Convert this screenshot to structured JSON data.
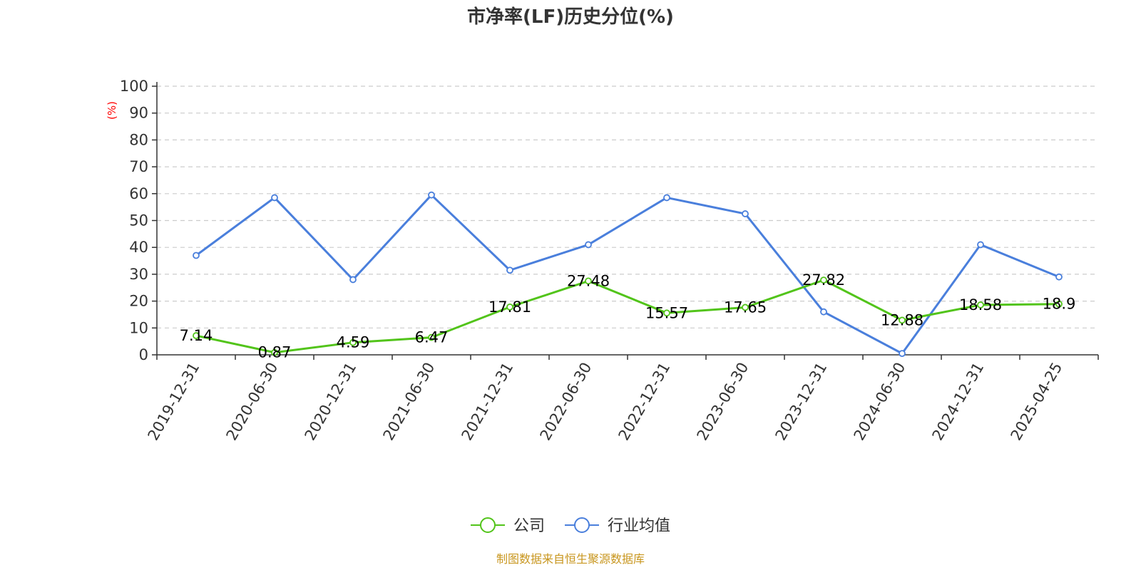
{
  "chart_data": {
    "type": "line",
    "title": "市净率(LF)历史分位(%)",
    "ylabel": "(%)",
    "ylim": [
      0,
      100
    ],
    "yticks": [
      0,
      10,
      20,
      30,
      40,
      50,
      60,
      70,
      80,
      90,
      100
    ],
    "grid": true,
    "legend_position": "bottom-center",
    "categories": [
      "2019-12-31",
      "2020-06-30",
      "2020-12-31",
      "2021-06-30",
      "2021-12-31",
      "2022-06-30",
      "2022-12-31",
      "2023-06-30",
      "2023-12-31",
      "2024-06-30",
      "2024-12-31",
      "2025-04-25"
    ],
    "series": [
      {
        "name": "公司",
        "color": "#52c41a",
        "show_labels": true,
        "values": [
          7.14,
          0.87,
          4.59,
          6.47,
          17.81,
          27.48,
          15.57,
          17.65,
          27.82,
          12.88,
          18.58,
          18.9
        ],
        "labels": [
          "7.14",
          "0.87",
          "4.59",
          "6.47",
          "17.81",
          "27.48",
          "15.57",
          "17.65",
          "27.82",
          "12.88",
          "18.58",
          "18.9"
        ]
      },
      {
        "name": "行业均值",
        "color": "#4a7fdc",
        "show_labels": false,
        "values": [
          37.0,
          58.5,
          28.0,
          59.5,
          31.5,
          41.0,
          58.5,
          52.5,
          16.0,
          0.5,
          41.0,
          29.0
        ]
      }
    ]
  },
  "footer": {
    "source": "制图数据来自恒生聚源数据库"
  },
  "colors": {
    "axis": "#333333",
    "grid": "#cccccc",
    "unit": "#ff0000",
    "source": "#c8961e"
  }
}
